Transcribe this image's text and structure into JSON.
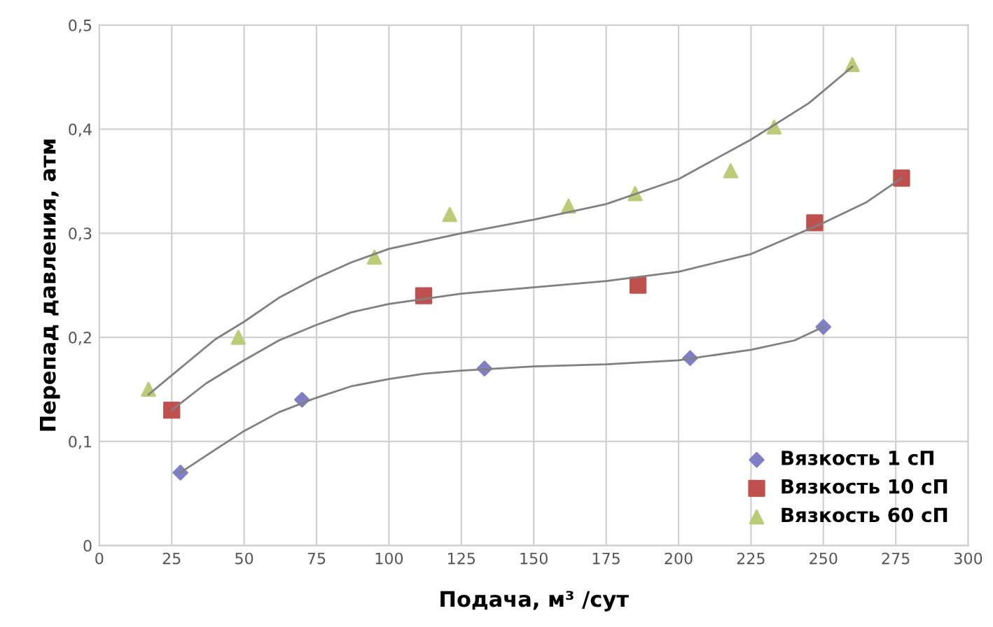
{
  "chart_data": {
    "type": "scatter",
    "xlabel": "Подача, м³ /сут",
    "ylabel": "Перепад давления, атм",
    "xlim": [
      0,
      300
    ],
    "xticks": [
      0,
      25,
      50,
      75,
      100,
      125,
      150,
      175,
      200,
      225,
      250,
      275,
      300
    ],
    "ylim": [
      0,
      0.5
    ],
    "yticks": [
      {
        "value": 0,
        "label": "0"
      },
      {
        "value": 0.1,
        "label": "0,1"
      },
      {
        "value": 0.2,
        "label": "0,2"
      },
      {
        "value": 0.3,
        "label": "0,3"
      },
      {
        "value": 0.4,
        "label": "0,4"
      },
      {
        "value": 0.5,
        "label": "0,5"
      }
    ],
    "grid": true,
    "legend": "bottom right",
    "series": [
      {
        "name": "Вязкость 1 сП",
        "color": "#7f7fc6",
        "marker": "diamond",
        "x": [
          28,
          70,
          133,
          204,
          250
        ],
        "values": [
          0.07,
          0.14,
          0.17,
          0.18,
          0.21
        ]
      },
      {
        "name": "Вязкость 10 сП",
        "color": "#c0504d",
        "marker": "square",
        "x": [
          25,
          112,
          186,
          247,
          277
        ],
        "values": [
          0.13,
          0.24,
          0.25,
          0.31,
          0.353
        ]
      },
      {
        "name": "Вязкость 60 сП",
        "color": "#bccb76",
        "marker": "triangle",
        "x": [
          17,
          48,
          95,
          121,
          162,
          185,
          218,
          233,
          260
        ],
        "values": [
          0.15,
          0.2,
          0.277,
          0.318,
          0.326,
          0.338,
          0.36,
          0.402,
          0.462
        ]
      },
      {
        "type": "line",
        "color": "#808080",
        "x": [
          28,
          40,
          50,
          62,
          75,
          87,
          100,
          112,
          125,
          150,
          175,
          200,
          225,
          240,
          250
        ],
        "values": [
          0.07,
          0.092,
          0.11,
          0.128,
          0.142,
          0.153,
          0.16,
          0.165,
          0.168,
          0.172,
          0.174,
          0.178,
          0.188,
          0.197,
          0.21
        ]
      },
      {
        "type": "line",
        "color": "#808080",
        "x": [
          25,
          37,
          50,
          62,
          75,
          87,
          100,
          125,
          150,
          175,
          200,
          225,
          250,
          265,
          277
        ],
        "values": [
          0.13,
          0.156,
          0.178,
          0.197,
          0.212,
          0.224,
          0.232,
          0.242,
          0.248,
          0.254,
          0.263,
          0.28,
          0.31,
          0.33,
          0.353
        ]
      },
      {
        "type": "line",
        "color": "#808080",
        "x": [
          17,
          30,
          40,
          50,
          62,
          75,
          87,
          100,
          125,
          150,
          175,
          200,
          225,
          245,
          260
        ],
        "values": [
          0.145,
          0.175,
          0.198,
          0.215,
          0.238,
          0.257,
          0.272,
          0.285,
          0.3,
          0.313,
          0.328,
          0.352,
          0.39,
          0.425,
          0.46
        ]
      }
    ]
  }
}
